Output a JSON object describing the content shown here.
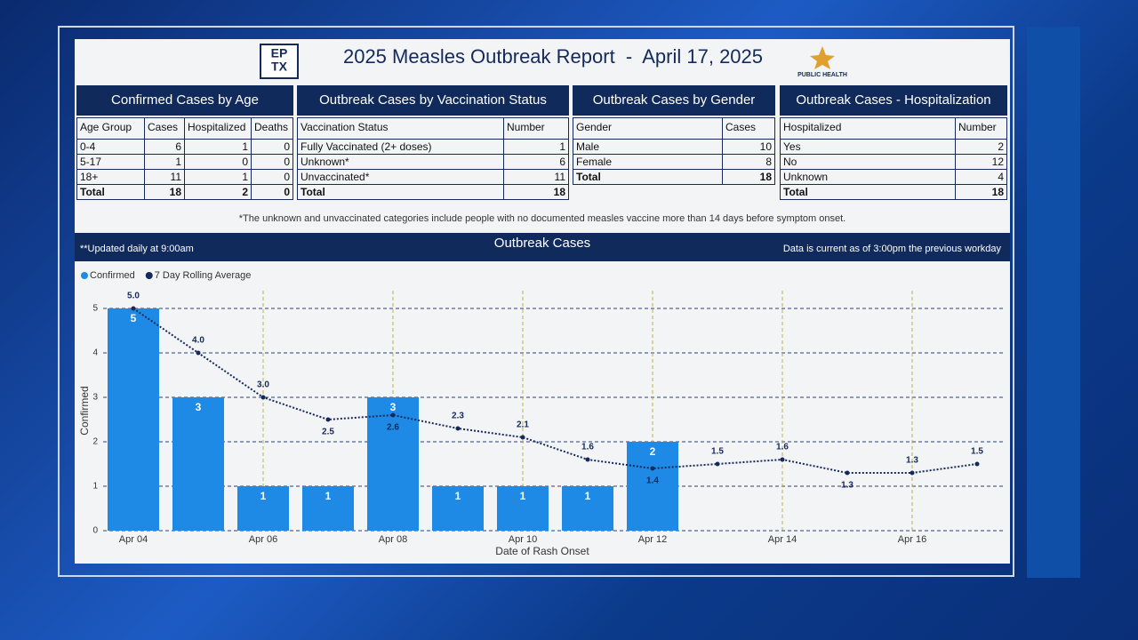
{
  "header": {
    "title": "2025 Measles Outbreak Report  -  April 17, 2025",
    "logo_left": [
      "EP",
      "TX"
    ],
    "logo_right": "PUBLIC HEALTH"
  },
  "tables": [
    {
      "title": "Confirmed Cases by Age",
      "columns": [
        "Age Group",
        "Cases",
        "Hospitalized",
        "Deaths"
      ],
      "rows": [
        [
          "0-4",
          6,
          1,
          0
        ],
        [
          "5-17",
          1,
          0,
          0
        ],
        [
          "18+",
          11,
          1,
          0
        ]
      ],
      "total": [
        "Total",
        18,
        2,
        0
      ]
    },
    {
      "title": "Outbreak Cases by Vaccination Status",
      "columns": [
        "Vaccination Status",
        "Number"
      ],
      "rows": [
        [
          "Fully Vaccinated (2+ doses)",
          1
        ],
        [
          "Unknown*",
          6
        ],
        [
          "Unvaccinated*",
          11
        ]
      ],
      "total": [
        "Total",
        18
      ]
    },
    {
      "title": "Outbreak Cases by Gender",
      "columns": [
        "Gender",
        "Cases"
      ],
      "rows": [
        [
          "Male",
          10
        ],
        [
          "Female",
          8
        ]
      ],
      "total": [
        "Total",
        18
      ]
    },
    {
      "title": "Outbreak Cases - Hospitalization",
      "columns": [
        "Hospitalized",
        "Number"
      ],
      "rows": [
        [
          "Yes",
          2
        ],
        [
          "No",
          12
        ],
        [
          "Unknown",
          4
        ]
      ],
      "total": [
        "Total",
        18
      ]
    }
  ],
  "footnote": "*The unknown and unvaccinated categories include people with no documented measles vaccine more than 14 days before symptom onset.",
  "banner": {
    "left": "**Updated daily at 9:00am",
    "center": "Outbreak Cases",
    "right": "Data is current as of 3:00pm the previous workday"
  },
  "chart_data": {
    "type": "combo",
    "xlabel": "Date of Rash Onset",
    "ylabel": "Confirmed",
    "categories": [
      "Apr 04",
      null,
      "Apr 06",
      null,
      "Apr 08",
      null,
      "Apr 10",
      null,
      "Apr 12",
      null,
      "Apr 14",
      null,
      "Apr 16",
      null
    ],
    "series": [
      {
        "name": "Confirmed",
        "kind": "bar",
        "color": "#1f8ae6",
        "values": [
          5,
          3,
          1,
          1,
          3,
          1,
          1,
          1,
          2,
          null,
          null,
          null,
          null,
          null
        ]
      },
      {
        "name": "7 Day Rolling Average",
        "kind": "line",
        "color": "#15295a",
        "values": [
          5,
          4,
          3,
          2.5,
          2.6,
          2.3,
          2.1,
          1.6,
          1.4,
          1.5,
          1.6,
          1.3,
          1.3,
          1.5
        ],
        "value_labels": [
          "5.0",
          "4.0",
          "3.0",
          "2.5",
          "2.6",
          "2.3",
          "2.1",
          "1.6",
          "1.4",
          "1.5",
          "1.6",
          "1.3",
          "1.3",
          "1.5"
        ]
      }
    ],
    "ylim": [
      0,
      5
    ],
    "yticks": [
      0,
      1,
      2,
      3,
      4,
      5
    ],
    "grid": true,
    "legend": "top-left"
  }
}
